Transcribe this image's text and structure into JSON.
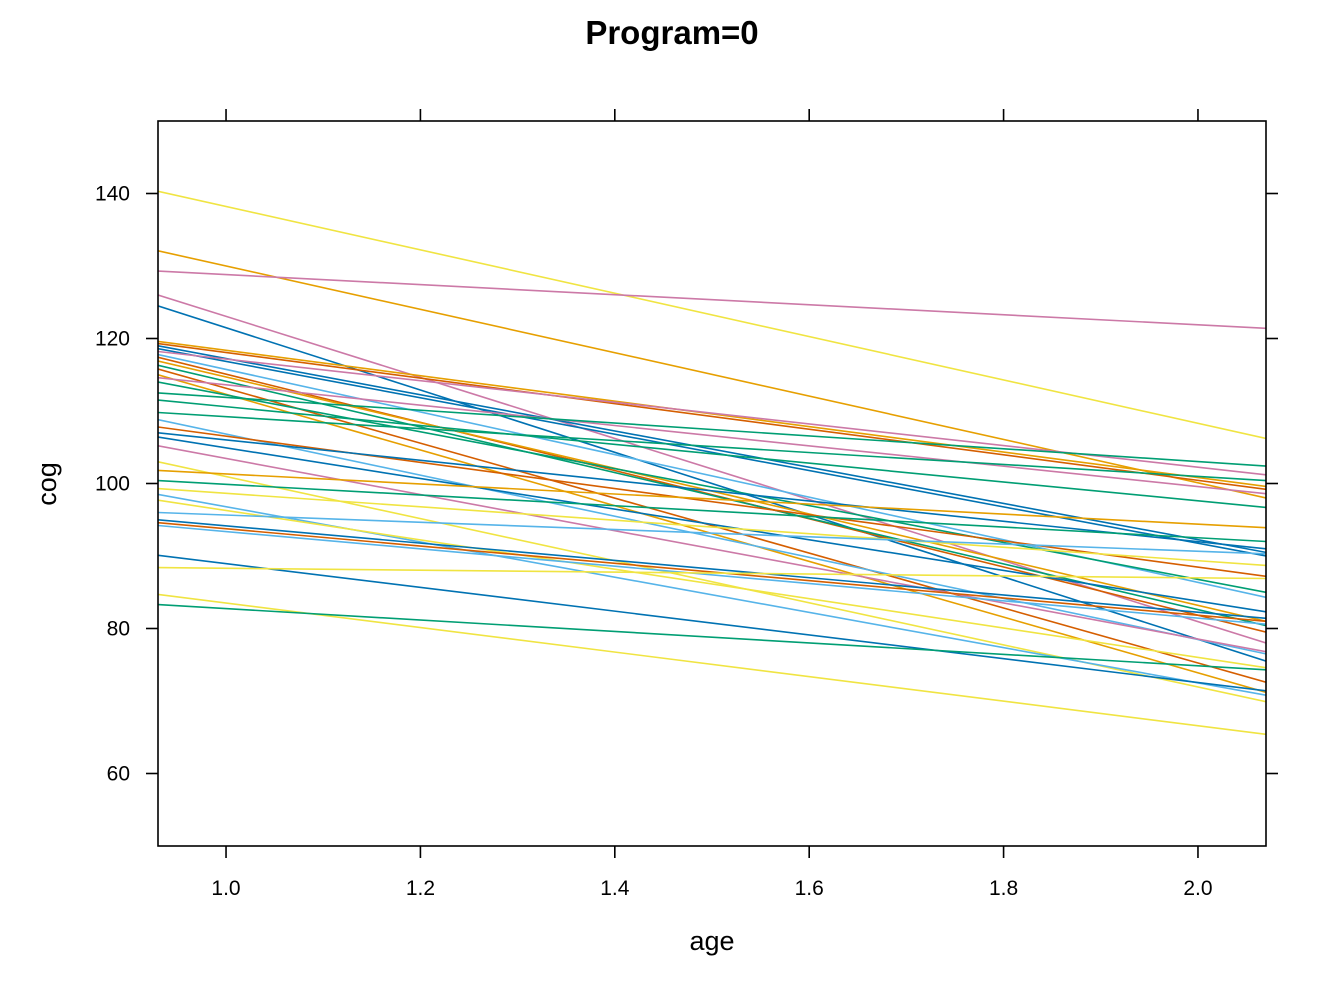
{
  "chart_data": {
    "type": "line",
    "title": "Program=0",
    "xlabel": "age",
    "ylabel": "cog",
    "xlim": [
      0.93,
      2.07
    ],
    "ylim": [
      50,
      150
    ],
    "xticks": [
      1.0,
      1.2,
      1.4,
      1.6,
      1.8,
      2.0
    ],
    "xtick_labels": [
      "1.0",
      "1.2",
      "1.4",
      "1.6",
      "1.8",
      "2.0"
    ],
    "yticks": [
      60,
      80,
      100,
      120,
      140
    ],
    "ytick_labels": [
      "60",
      "80",
      "100",
      "120",
      "140"
    ],
    "grid": false,
    "legend": "none",
    "palette": [
      "#E69F00",
      "#56B4E9",
      "#009E73",
      "#F0E442",
      "#0072B2",
      "#D55E00",
      "#CC79A7"
    ],
    "series": [
      {
        "color": "#F0E442",
        "x": [
          0.93,
          2.07
        ],
        "y": [
          140.3,
          106.2
        ]
      },
      {
        "color": "#E69F00",
        "x": [
          0.93,
          2.07
        ],
        "y": [
          132.1,
          98.0
        ]
      },
      {
        "color": "#CC79A7",
        "x": [
          0.93,
          2.07
        ],
        "y": [
          129.3,
          121.4
        ]
      },
      {
        "color": "#CC79A7",
        "x": [
          0.93,
          2.07
        ],
        "y": [
          126.0,
          78.0
        ]
      },
      {
        "color": "#0072B2",
        "x": [
          0.93,
          2.07
        ],
        "y": [
          124.5,
          75.5
        ]
      },
      {
        "color": "#E69F00",
        "x": [
          0.93,
          2.07
        ],
        "y": [
          119.6,
          99.6
        ]
      },
      {
        "color": "#D55E00",
        "x": [
          0.93,
          2.07
        ],
        "y": [
          119.3,
          99.2
        ]
      },
      {
        "color": "#0072B2",
        "x": [
          0.93,
          2.07
        ],
        "y": [
          119.0,
          90.5
        ]
      },
      {
        "color": "#0072B2",
        "x": [
          0.93,
          2.07
        ],
        "y": [
          118.6,
          90.0
        ]
      },
      {
        "color": "#CC79A7",
        "x": [
          0.93,
          2.07
        ],
        "y": [
          118.2,
          101.2
        ]
      },
      {
        "color": "#56B4E9",
        "x": [
          0.93,
          2.07
        ],
        "y": [
          117.8,
          84.3
        ]
      },
      {
        "color": "#D55E00",
        "x": [
          0.93,
          2.07
        ],
        "y": [
          117.4,
          79.5
        ]
      },
      {
        "color": "#E69F00",
        "x": [
          0.93,
          2.07
        ],
        "y": [
          116.9,
          81.0
        ]
      },
      {
        "color": "#009E73",
        "x": [
          0.93,
          2.07
        ],
        "y": [
          116.3,
          80.4
        ]
      },
      {
        "color": "#D55E00",
        "x": [
          0.93,
          2.07
        ],
        "y": [
          115.8,
          72.6
        ]
      },
      {
        "color": "#E69F00",
        "x": [
          0.93,
          2.07
        ],
        "y": [
          115.0,
          71.2
        ]
      },
      {
        "color": "#CC79A7",
        "x": [
          0.93,
          2.07
        ],
        "y": [
          114.6,
          98.6
        ]
      },
      {
        "color": "#009E73",
        "x": [
          0.93,
          2.07
        ],
        "y": [
          114.0,
          85.0
        ]
      },
      {
        "color": "#009E73",
        "x": [
          0.93,
          2.07
        ],
        "y": [
          112.5,
          102.4
        ]
      },
      {
        "color": "#009E73",
        "x": [
          0.93,
          2.07
        ],
        "y": [
          111.5,
          96.7
        ]
      },
      {
        "color": "#009E73",
        "x": [
          0.93,
          2.07
        ],
        "y": [
          109.8,
          100.4
        ]
      },
      {
        "color": "#56B4E9",
        "x": [
          0.93,
          2.07
        ],
        "y": [
          108.8,
          76.5
        ]
      },
      {
        "color": "#D55E00",
        "x": [
          0.93,
          2.07
        ],
        "y": [
          107.8,
          87.2
        ]
      },
      {
        "color": "#0072B2",
        "x": [
          0.93,
          2.07
        ],
        "y": [
          107.0,
          91.0
        ]
      },
      {
        "color": "#0072B2",
        "x": [
          0.93,
          2.07
        ],
        "y": [
          106.4,
          82.3
        ]
      },
      {
        "color": "#CC79A7",
        "x": [
          0.93,
          2.07
        ],
        "y": [
          105.2,
          76.8
        ]
      },
      {
        "color": "#F0E442",
        "x": [
          0.93,
          2.07
        ],
        "y": [
          103.0,
          69.9
        ]
      },
      {
        "color": "#E69F00",
        "x": [
          0.93,
          2.07
        ],
        "y": [
          101.8,
          93.9
        ]
      },
      {
        "color": "#009E73",
        "x": [
          0.93,
          2.07
        ],
        "y": [
          100.4,
          92.0
        ]
      },
      {
        "color": "#F0E442",
        "x": [
          0.93,
          2.07
        ],
        "y": [
          99.3,
          88.7
        ]
      },
      {
        "color": "#56B4E9",
        "x": [
          0.93,
          2.07
        ],
        "y": [
          98.5,
          70.8
        ]
      },
      {
        "color": "#F0E442",
        "x": [
          0.93,
          2.07
        ],
        "y": [
          97.7,
          74.6
        ]
      },
      {
        "color": "#56B4E9",
        "x": [
          0.93,
          2.07
        ],
        "y": [
          96.0,
          90.3
        ]
      },
      {
        "color": "#56B4E9",
        "x": [
          0.93,
          2.07
        ],
        "y": [
          94.2,
          80.6
        ]
      },
      {
        "color": "#0072B2",
        "x": [
          0.93,
          2.07
        ],
        "y": [
          95.0,
          81.4
        ]
      },
      {
        "color": "#D55E00",
        "x": [
          0.93,
          2.07
        ],
        "y": [
          94.6,
          81.0
        ]
      },
      {
        "color": "#0072B2",
        "x": [
          0.93,
          2.07
        ],
        "y": [
          90.1,
          71.4
        ]
      },
      {
        "color": "#F0E442",
        "x": [
          0.93,
          2.07
        ],
        "y": [
          88.4,
          86.9
        ]
      },
      {
        "color": "#F0E442",
        "x": [
          0.93,
          2.07
        ],
        "y": [
          84.7,
          65.4
        ]
      },
      {
        "color": "#009E73",
        "x": [
          0.93,
          2.07
        ],
        "y": [
          83.3,
          74.3
        ]
      }
    ]
  }
}
